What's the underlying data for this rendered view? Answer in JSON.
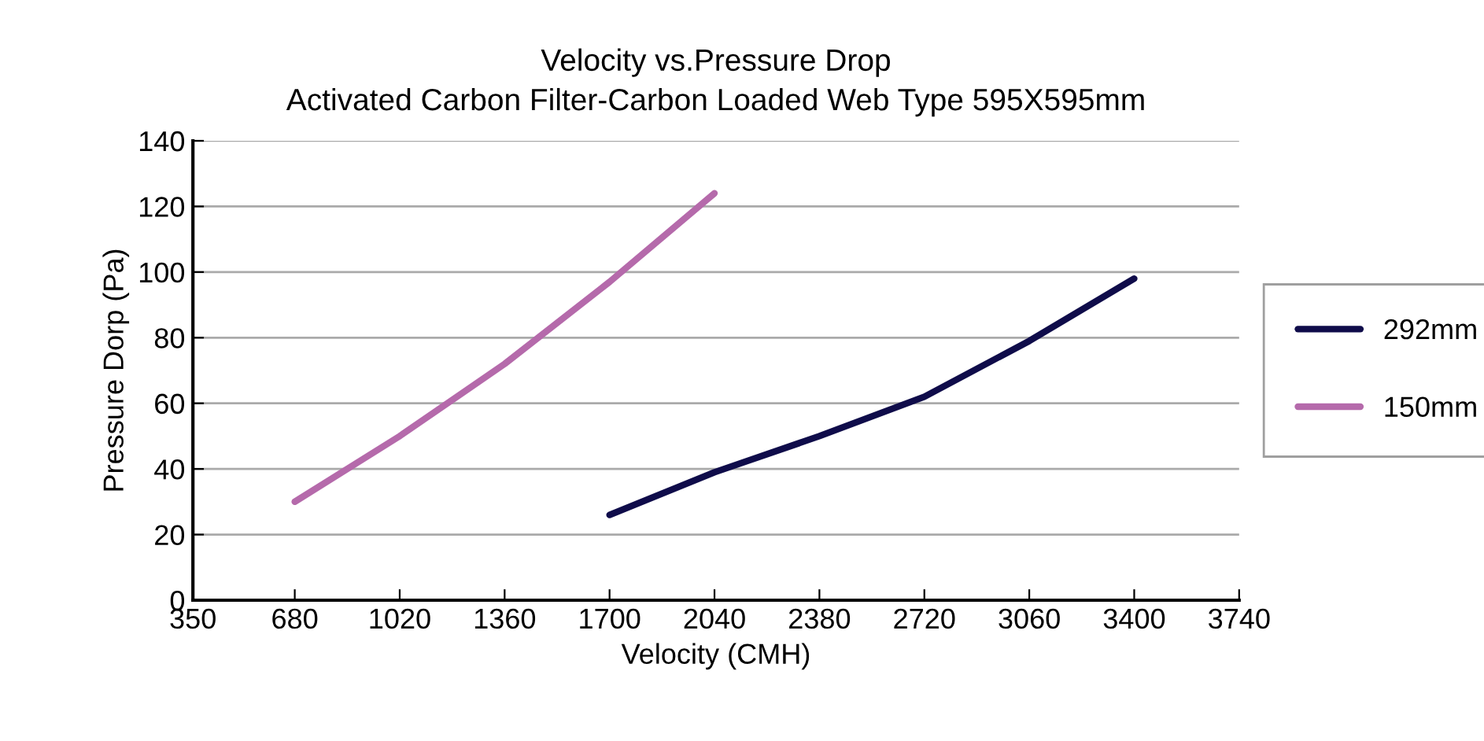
{
  "chart_data": {
    "type": "line",
    "title": "Velocity vs.Pressure Drop\nActivated Carbon Filter-Carbon Loaded Web Type 595X595mm",
    "xlabel": "Velocity (CMH)",
    "ylabel": "Pressure Dorp (Pa)",
    "series": [
      {
        "name": "292mm",
        "color": "#0f0c4a",
        "x": [
          1700,
          2040,
          2380,
          2720,
          3060,
          3400
        ],
        "values": [
          26,
          39,
          50,
          62,
          79,
          98
        ]
      },
      {
        "name": "150mm",
        "color": "#b56aab",
        "x": [
          680,
          1020,
          1360,
          1700,
          2040
        ],
        "values": [
          30,
          50,
          72,
          97,
          124
        ]
      }
    ],
    "xlim": [
      350,
      3740
    ],
    "xticks": [
      350,
      680,
      1020,
      1360,
      1700,
      2040,
      2380,
      2720,
      3060,
      3400,
      3740
    ],
    "ylim": [
      0,
      140
    ],
    "yticks": [
      0,
      20,
      40,
      60,
      80,
      100,
      120,
      140
    ],
    "grid": "y",
    "legend": "right",
    "marker": "none",
    "line_style": "solid"
  }
}
